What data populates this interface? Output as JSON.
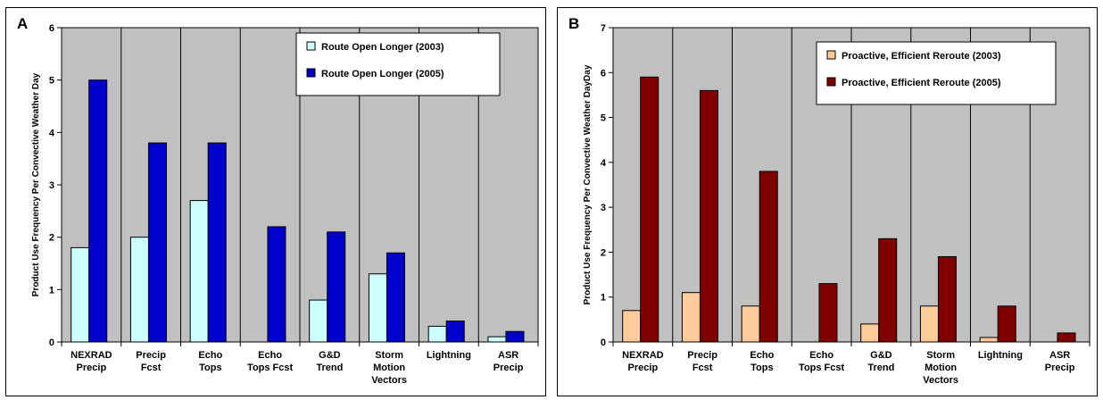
{
  "chart_data": [
    {
      "type": "bar",
      "panel_label": "A",
      "title": "",
      "xlabel": "",
      "ylabel": "Product Use Frequency Per Convective Weather Day",
      "ylim": [
        0,
        6
      ],
      "yticks": [
        0,
        1,
        2,
        3,
        4,
        5,
        6
      ],
      "categories": [
        [
          "NEXRAD",
          "Precip"
        ],
        [
          "Precip",
          "Fcst"
        ],
        [
          "Echo",
          "Tops"
        ],
        [
          "Echo",
          "Tops Fcst"
        ],
        [
          "G&D",
          "Trend"
        ],
        [
          "Storm",
          "Motion",
          "Vectors"
        ],
        [
          "Lightning"
        ],
        [
          "ASR",
          "Precip"
        ]
      ],
      "series": [
        {
          "name": "Route Open Longer (2003)",
          "color": "#ccffff",
          "values": [
            1.8,
            2.0,
            2.7,
            0,
            0.8,
            1.3,
            0.3,
            0.1
          ]
        },
        {
          "name": "Route Open Longer (2005)",
          "color": "#0000cc",
          "values": [
            5.0,
            3.8,
            3.8,
            2.2,
            2.1,
            1.7,
            0.4,
            0.2
          ]
        }
      ],
      "plot_background": "#c0c0c0",
      "legend_position": "top-right",
      "grid": false
    },
    {
      "type": "bar",
      "panel_label": "B",
      "title": "",
      "xlabel": "",
      "ylabel": "Product Use Frequency Per Convective Weather DayDay",
      "ylim": [
        0,
        7
      ],
      "yticks": [
        0,
        1,
        2,
        3,
        4,
        5,
        6,
        7
      ],
      "categories": [
        [
          "NEXRAD",
          "Precip"
        ],
        [
          "Precip",
          "Fcst"
        ],
        [
          "Echo",
          "Tops"
        ],
        [
          "Echo",
          "Tops Fcst"
        ],
        [
          "G&D",
          "Trend"
        ],
        [
          "Storm",
          "Motion",
          "Vectors"
        ],
        [
          "Lightning"
        ],
        [
          "ASR",
          "Precip"
        ]
      ],
      "series": [
        {
          "name": "Proactive, Efficient Reroute (2003)",
          "color": "#ffcc99",
          "values": [
            0.7,
            1.1,
            0.8,
            0,
            0.4,
            0.8,
            0.1,
            0
          ]
        },
        {
          "name": "Proactive, Efficient Reroute (2005)",
          "color": "#800000",
          "values": [
            5.9,
            5.6,
            3.8,
            1.3,
            2.3,
            1.9,
            0.8,
            0.2
          ]
        }
      ],
      "plot_background": "#c0c0c0",
      "legend_position": "top-right",
      "grid": false
    }
  ]
}
